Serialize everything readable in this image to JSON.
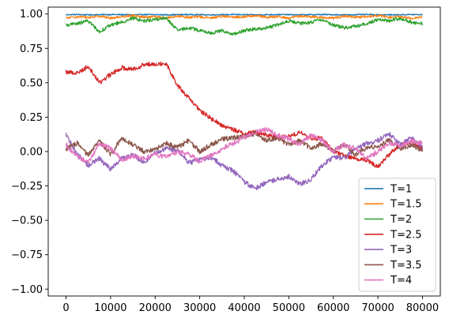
{
  "chart_data": {
    "type": "line",
    "title": "",
    "xlabel": "",
    "ylabel": "",
    "xlim": [
      -4000,
      84000
    ],
    "ylim": [
      -1.05,
      1.05
    ],
    "grid": false,
    "legend_position": "lower-right",
    "x_ticks": [
      {
        "value": 0,
        "label": "0"
      },
      {
        "value": 10000,
        "label": "10000"
      },
      {
        "value": 20000,
        "label": "20000"
      },
      {
        "value": 30000,
        "label": "30000"
      },
      {
        "value": 40000,
        "label": "40000"
      },
      {
        "value": 50000,
        "label": "50000"
      },
      {
        "value": 60000,
        "label": "60000"
      },
      {
        "value": 70000,
        "label": "70000"
      },
      {
        "value": 80000,
        "label": "80000"
      }
    ],
    "y_ticks": [
      {
        "value": 1.0,
        "label": "1.00"
      },
      {
        "value": 0.75,
        "label": "0.75"
      },
      {
        "value": 0.5,
        "label": "0.50"
      },
      {
        "value": 0.25,
        "label": "0.25"
      },
      {
        "value": 0.0,
        "label": "0.00"
      },
      {
        "value": -0.25,
        "label": "−0.25"
      },
      {
        "value": -0.5,
        "label": "−0.50"
      },
      {
        "value": -0.75,
        "label": "−0.75"
      },
      {
        "value": -1.0,
        "label": "−1.00"
      }
    ],
    "x": [
      0,
      2500,
      5000,
      7500,
      10000,
      12500,
      15000,
      17500,
      20000,
      22500,
      25000,
      27500,
      30000,
      32500,
      35000,
      37500,
      40000,
      42500,
      45000,
      47500,
      50000,
      52500,
      55000,
      57500,
      60000,
      62500,
      65000,
      67500,
      70000,
      72500,
      75000,
      77500,
      80000
    ],
    "series": [
      {
        "name": "T=1",
        "color": "#1f77b4",
        "values": [
          0.995,
          0.996,
          0.994,
          0.995,
          0.996,
          0.995,
          0.994,
          0.996,
          0.995,
          0.994,
          0.995,
          0.996,
          0.995,
          0.994,
          0.995,
          0.996,
          0.995,
          0.994,
          0.995,
          0.996,
          0.995,
          0.994,
          0.995,
          0.996,
          0.995,
          0.994,
          0.995,
          0.996,
          0.995,
          0.994,
          0.995,
          0.996,
          0.995
        ]
      },
      {
        "name": "T=1.5",
        "color": "#ff7f0e",
        "values": [
          0.97,
          0.98,
          0.975,
          0.985,
          0.97,
          0.98,
          0.99,
          0.975,
          0.98,
          0.97,
          0.985,
          0.975,
          0.98,
          0.97,
          0.985,
          0.975,
          0.98,
          0.99,
          0.975,
          0.98,
          0.97,
          0.985,
          0.98,
          0.975,
          0.97,
          0.985,
          0.975,
          0.98,
          0.99,
          0.975,
          0.98,
          0.97,
          0.98
        ]
      },
      {
        "name": "T=2",
        "color": "#2ca02c",
        "values": [
          0.92,
          0.93,
          0.95,
          0.87,
          0.92,
          0.94,
          0.97,
          0.95,
          0.96,
          0.97,
          0.88,
          0.9,
          0.88,
          0.86,
          0.88,
          0.85,
          0.88,
          0.89,
          0.9,
          0.92,
          0.95,
          0.93,
          0.94,
          0.96,
          0.92,
          0.9,
          0.91,
          0.93,
          0.96,
          0.95,
          0.97,
          0.94,
          0.93
        ]
      },
      {
        "name": "T=2.5",
        "color": "#d62728",
        "values": [
          0.58,
          0.57,
          0.62,
          0.5,
          0.56,
          0.61,
          0.6,
          0.63,
          0.64,
          0.64,
          0.48,
          0.39,
          0.3,
          0.24,
          0.19,
          0.16,
          0.13,
          0.14,
          0.12,
          0.1,
          0.11,
          0.14,
          0.09,
          0.1,
          0.0,
          -0.03,
          -0.05,
          -0.06,
          -0.11,
          -0.02,
          0.05,
          0.07,
          0.02
        ]
      },
      {
        "name": "T=3",
        "color": "#9467bd",
        "values": [
          0.12,
          -0.02,
          -0.1,
          -0.05,
          -0.13,
          -0.05,
          -0.02,
          -0.08,
          -0.01,
          0.02,
          0.01,
          -0.08,
          -0.06,
          -0.04,
          -0.1,
          -0.14,
          -0.22,
          -0.27,
          -0.22,
          -0.2,
          -0.18,
          -0.24,
          -0.2,
          -0.1,
          -0.04,
          -0.05,
          0.02,
          0.06,
          0.08,
          0.13,
          0.05,
          0.1,
          0.03
        ]
      },
      {
        "name": "T=3.5",
        "color": "#8c564b",
        "values": [
          0.02,
          0.06,
          -0.03,
          0.08,
          -0.02,
          0.1,
          0.05,
          0.0,
          0.02,
          0.06,
          0.03,
          0.08,
          0.0,
          0.05,
          0.09,
          0.1,
          0.11,
          0.13,
          0.08,
          0.1,
          0.05,
          0.08,
          0.02,
          0.06,
          0.0,
          0.05,
          -0.02,
          0.03,
          0.04,
          0.08,
          0.02,
          0.05,
          0.01
        ]
      },
      {
        "name": "T=4",
        "color": "#e377c2",
        "values": [
          0.05,
          -0.04,
          -0.08,
          0.06,
          0.02,
          -0.06,
          -0.03,
          -0.05,
          -0.02,
          -0.04,
          0.0,
          -0.02,
          -0.07,
          -0.03,
          0.02,
          0.06,
          0.1,
          0.14,
          0.16,
          0.12,
          0.09,
          0.05,
          0.12,
          0.08,
          0.0,
          0.05,
          0.02,
          -0.05,
          0.0,
          0.06,
          0.04,
          0.08,
          0.06
        ]
      }
    ]
  }
}
